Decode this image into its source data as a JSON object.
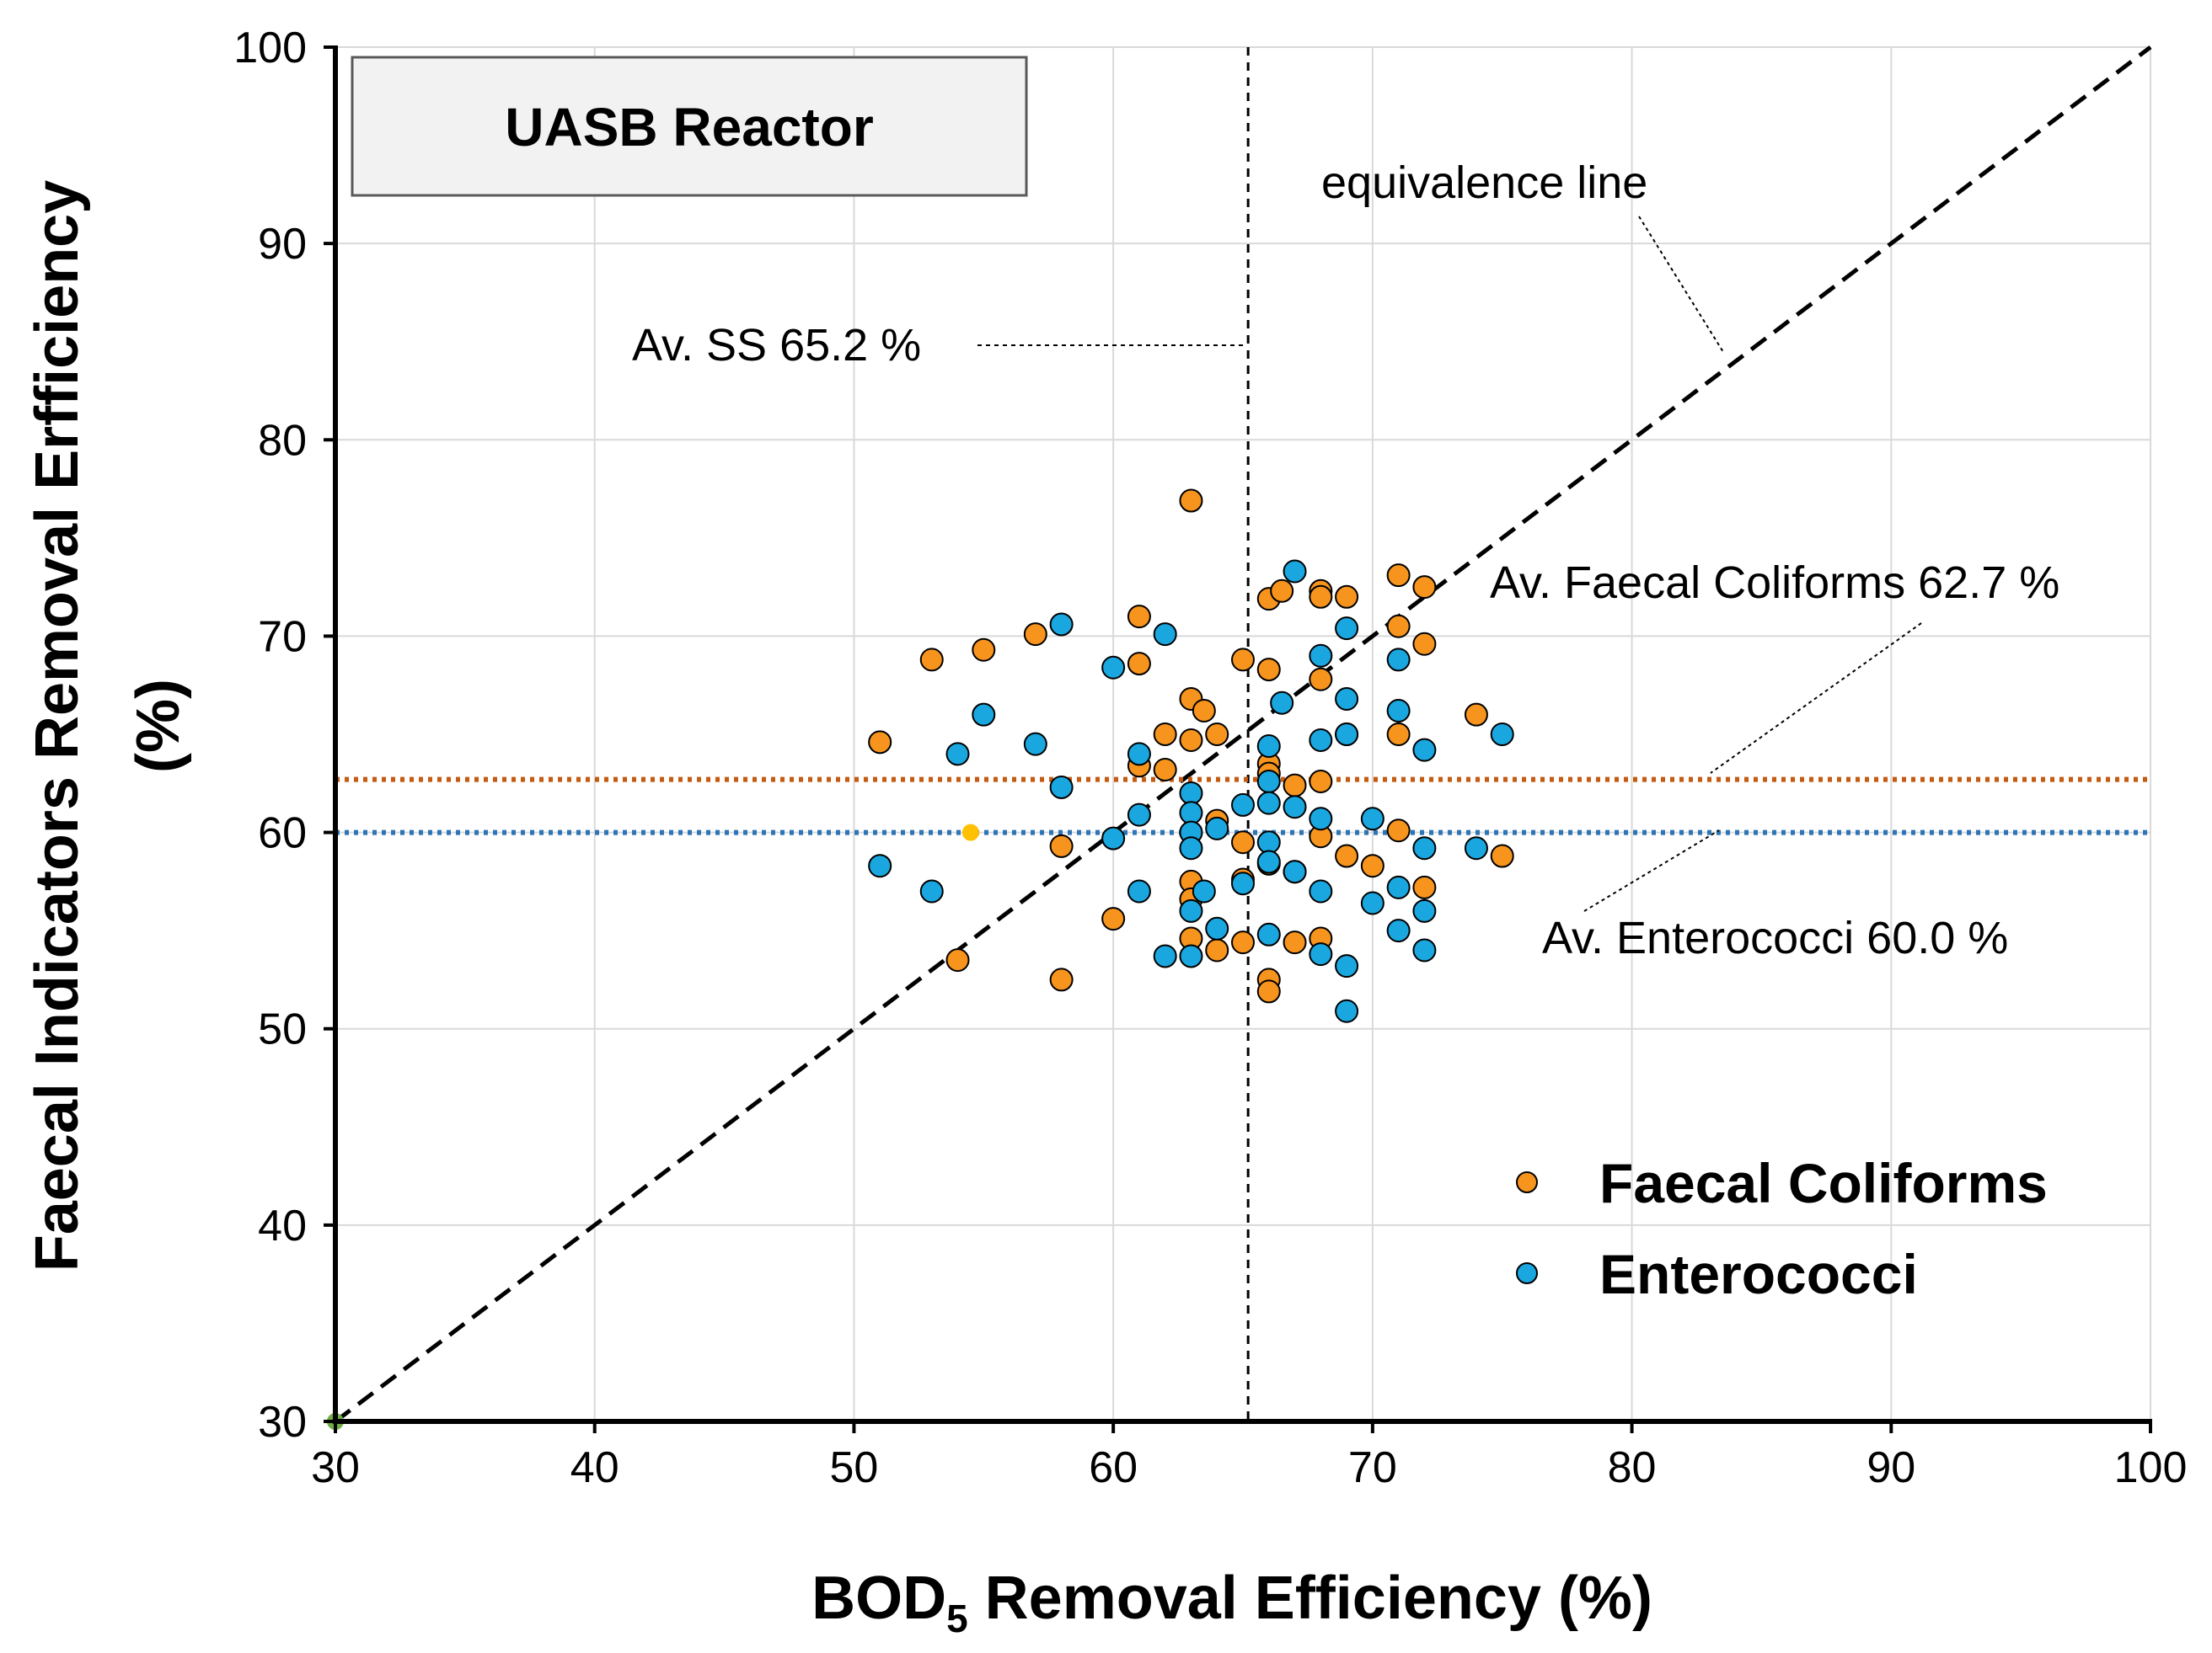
{
  "chart_data": {
    "type": "scatter",
    "title": "UASB Reactor",
    "xlabel": "BOD",
    "xlabel_sub": "5",
    "xlabel_rest": " Removal Efficiency  (%)",
    "ylabel_line1": "Faecal Indicators Removal Erfficiency",
    "ylabel_line2": "(%)",
    "xlim": [
      30,
      100
    ],
    "ylim": [
      30,
      100
    ],
    "xticks": [
      "30",
      "40",
      "50",
      "60",
      "70",
      "80",
      "90",
      "100"
    ],
    "yticks": [
      "30",
      "40",
      "50",
      "60",
      "70",
      "80",
      "90",
      "100"
    ],
    "grid": true,
    "legend_position": "bottom-right",
    "series": [
      {
        "name": "Faecal Coliforms",
        "color": "#F7941D",
        "points": [
          [
            51,
            64.6
          ],
          [
            53,
            68.8
          ],
          [
            54,
            53.5
          ],
          [
            55,
            69.3
          ],
          [
            57,
            70.1
          ],
          [
            58,
            59.3
          ],
          [
            58,
            52.5
          ],
          [
            60,
            55.6
          ],
          [
            61,
            71.0
          ],
          [
            61,
            68.6
          ],
          [
            61,
            63.4
          ],
          [
            62,
            65.0
          ],
          [
            62,
            63.2
          ],
          [
            63,
            76.9
          ],
          [
            63,
            66.8
          ],
          [
            63,
            64.7
          ],
          [
            63.5,
            66.2
          ],
          [
            63,
            57.5
          ],
          [
            63,
            56.6
          ],
          [
            63,
            54.6
          ],
          [
            64,
            65.0
          ],
          [
            64,
            60.6
          ],
          [
            64,
            54.0
          ],
          [
            65,
            68.8
          ],
          [
            65,
            59.5
          ],
          [
            65,
            57.6
          ],
          [
            65,
            54.4
          ],
          [
            66,
            68.3
          ],
          [
            66,
            71.9
          ],
          [
            66.5,
            72.3
          ],
          [
            66,
            63.5
          ],
          [
            66,
            63.0
          ],
          [
            66,
            58.4
          ],
          [
            66,
            52.5
          ],
          [
            66,
            51.9
          ],
          [
            67,
            62.4
          ],
          [
            67,
            58.0
          ],
          [
            67,
            54.4
          ],
          [
            68,
            72.3
          ],
          [
            68,
            72.0
          ],
          [
            68,
            67.8
          ],
          [
            68,
            62.6
          ],
          [
            68,
            59.8
          ],
          [
            68,
            54.6
          ],
          [
            69,
            72.0
          ],
          [
            69,
            65.0
          ],
          [
            69,
            58.8
          ],
          [
            70,
            58.3
          ],
          [
            71,
            73.1
          ],
          [
            71,
            70.5
          ],
          [
            71,
            65.0
          ],
          [
            71,
            60.1
          ],
          [
            72,
            72.5
          ],
          [
            72,
            69.6
          ],
          [
            72,
            57.2
          ],
          [
            74,
            66.0
          ],
          [
            75,
            58.8
          ]
        ]
      },
      {
        "name": "Enterococci",
        "color": "#1AA7E0",
        "points": [
          [
            51,
            58.3
          ],
          [
            53,
            57.0
          ],
          [
            54,
            64.0
          ],
          [
            55,
            66.0
          ],
          [
            57,
            64.5
          ],
          [
            58,
            70.6
          ],
          [
            58,
            62.3
          ],
          [
            60,
            68.4
          ],
          [
            60,
            59.7
          ],
          [
            61,
            64.0
          ],
          [
            61,
            60.9
          ],
          [
            61,
            57.0
          ],
          [
            62,
            70.1
          ],
          [
            62,
            53.7
          ],
          [
            63,
            62.0
          ],
          [
            63,
            61.0
          ],
          [
            63,
            60.0
          ],
          [
            63,
            59.2
          ],
          [
            63,
            56.0
          ],
          [
            63,
            53.7
          ],
          [
            63.5,
            57.0
          ],
          [
            64,
            60.2
          ],
          [
            64,
            55.1
          ],
          [
            65,
            61.4
          ],
          [
            65,
            57.4
          ],
          [
            66,
            64.4
          ],
          [
            66,
            62.6
          ],
          [
            66,
            61.5
          ],
          [
            66,
            59.5
          ],
          [
            66,
            58.5
          ],
          [
            66,
            54.8
          ],
          [
            66.5,
            66.6
          ],
          [
            67,
            73.3
          ],
          [
            67,
            61.3
          ],
          [
            67,
            58.0
          ],
          [
            68,
            69.0
          ],
          [
            68,
            64.7
          ],
          [
            68,
            60.7
          ],
          [
            68,
            57.0
          ],
          [
            68,
            53.8
          ],
          [
            69,
            70.4
          ],
          [
            69,
            66.8
          ],
          [
            69,
            65.0
          ],
          [
            69,
            53.2
          ],
          [
            69,
            50.9
          ],
          [
            70,
            60.7
          ],
          [
            70,
            56.4
          ],
          [
            71,
            68.8
          ],
          [
            71,
            66.2
          ],
          [
            71,
            57.2
          ],
          [
            71,
            55.0
          ],
          [
            72,
            64.2
          ],
          [
            72,
            59.2
          ],
          [
            72,
            56.0
          ],
          [
            72,
            54.0
          ],
          [
            74,
            59.2
          ],
          [
            75,
            65.0
          ]
        ]
      }
    ],
    "reference_lines": {
      "equivalence": {
        "label": "equivalence line",
        "from": [
          30,
          30
        ],
        "to": [
          100,
          100
        ]
      },
      "av_ss": {
        "label": "Av. SS 65.2 %",
        "x": 65.2
      },
      "av_fc": {
        "label": "Av. Faecal Coliforms 62.7 %",
        "y": 62.7,
        "color": "#C55A11"
      },
      "av_ent": {
        "label": "Av. Enterococci 60.0 %",
        "y": 60.0,
        "color": "#2E75B6"
      }
    },
    "extra_markers": [
      {
        "x": 54.5,
        "y": 60.0,
        "color": "#FFC000"
      },
      {
        "x": 30,
        "y": 30,
        "color": "#70AD47"
      }
    ]
  }
}
